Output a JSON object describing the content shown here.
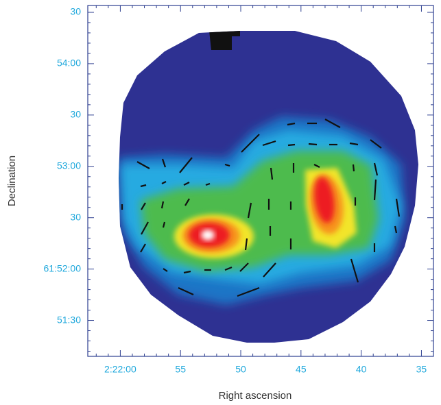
{
  "chart_data": {
    "type": "image-map",
    "x_label": "Right ascension",
    "y_label": "Declination",
    "xlim": [
      8522.7,
      8494.0
    ],
    "xticks": [
      {
        "value": 8520,
        "label": "2:22:00"
      },
      {
        "value": 8515,
        "label": "55"
      },
      {
        "value": 8510,
        "label": "50"
      },
      {
        "value": 8505,
        "label": "45"
      },
      {
        "value": 8500,
        "label": "40"
      },
      {
        "value": 8495,
        "label": "35"
      }
    ],
    "ylim": [
      222669,
      222874
    ],
    "yticks": [
      {
        "value": 222690,
        "label": "51:30"
      },
      {
        "value": 222720,
        "label": "61:52:00"
      },
      {
        "value": 222750,
        "label": "30"
      },
      {
        "value": 222780,
        "label": "53:00"
      },
      {
        "value": 222810,
        "label": "30"
      },
      {
        "value": 222840,
        "label": "54:00"
      },
      {
        "value": 222870,
        "label": "30"
      }
    ]
  }
}
